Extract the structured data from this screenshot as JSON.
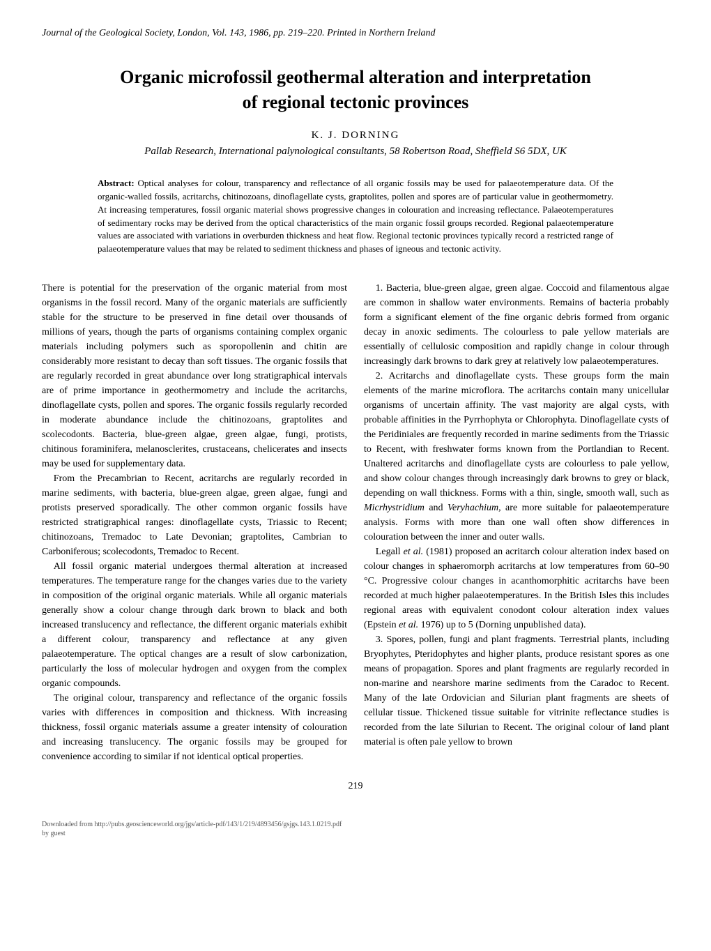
{
  "journal_header": "Journal of the Geological Society, London, Vol. 143, 1986, pp. 219–220. Printed in Northern Ireland",
  "title_line1": "Organic microfossil geothermal alteration and interpretation",
  "title_line2": "of regional tectonic provinces",
  "author": "K. J. DORNING",
  "affiliation": "Pallab Research, International palynological consultants, 58 Robertson Road, Sheffield S6 5DX, UK",
  "abstract_label": "Abstract:",
  "abstract_text": " Optical analyses for colour, transparency and reflectance of all organic fossils may be used for palaeotemperature data. Of the organic-walled fossils, acritarchs, chitinozoans, dinoflagellate cysts, graptolites, pollen and spores are of particular value in geothermometry. At increasing temperatures, fossil organic material shows progressive changes in colouration and increasing reflectance. Palaeotemperatures of sedimentary rocks may be derived from the optical characteristics of the main organic fossil groups recorded. Regional palaeotemperature values are associated with variations in overburden thickness and heat flow. Regional tectonic provinces typically record a restricted range of palaeotemperature values that may be related to sediment thickness and phases of igneous and tectonic activity.",
  "left_col": {
    "p1": "There is potential for the preservation of the organic material from most organisms in the fossil record. Many of the organic materials are sufficiently stable for the structure to be preserved in fine detail over thousands of millions of years, though the parts of organisms containing complex organic materials including polymers such as sporopollenin and chitin are considerably more resistant to decay than soft tissues. The organic fossils that are regularly recorded in great abundance over long stratigraphical intervals are of prime importance in geothermometry and include the acritarchs, dinoflagellate cysts, pollen and spores. The organic fossils regularly recorded in moderate abundance include the chitinozoans, graptolites and scolecodonts. Bacteria, blue-green algae, green algae, fungi, protists, chitinous foraminifera, melanosclerites, crustaceans, chelicerates and insects may be used for supplementary data.",
    "p2": "From the Precambrian to Recent, acritarchs are regularly recorded in marine sediments, with bacteria, blue-green algae, green algae, fungi and protists preserved sporadically. The other common organic fossils have restricted stratigraphical ranges: dinoflagellate cysts, Triassic to Recent; chitinozoans, Tremadoc to Late Devonian; graptolites, Cambrian to Carboniferous; scolecodonts, Tremadoc to Recent.",
    "p3": "All fossil organic material undergoes thermal alteration at increased temperatures. The temperature range for the changes varies due to the variety in composition of the original organic materials. While all organic materials generally show a colour change through dark brown to black and both increased translucency and reflectance, the different organic materials exhibit a different colour, transparency and reflectance at any given palaeotemperature. The optical changes are a result of slow carbonization, particularly the loss of molecular hydrogen and oxygen from the complex organic compounds.",
    "p4": "The original colour, transparency and reflectance of the organic fossils varies with differences in composition and thickness. With increasing thickness, fossil organic materials assume a greater intensity of colouration and increasing translucency. The organic fossils may be grouped for convenience according to similar if not identical optical properties."
  },
  "right_col": {
    "p1": "1. Bacteria, blue-green algae, green algae. Coccoid and filamentous algae are common in shallow water environments. Remains of bacteria probably form a significant element of the fine organic debris formed from organic decay in anoxic sediments. The colourless to pale yellow materials are essentially of cellulosic composition and rapidly change in colour through increasingly dark browns to dark grey at relatively low palaeotemperatures.",
    "p2": "2. Acritarchs and dinoflagellate cysts. These groups form the main elements of the marine microflora. The acritarchs contain many unicellular organisms of uncertain affinity. The vast majority are algal cysts, with probable affinities in the Pyrrhophyta or Chlorophyta. Dinoflagellate cysts of the Peridiniales are frequently recorded in marine sediments from the Triassic to Recent, with freshwater forms known from the Portlandian to Recent. Unaltered acritarchs and dinoflagellate cysts are colourless to pale yellow, and show colour changes through increasingly dark browns to grey or black, depending on wall thickness. Forms with a thin, single, smooth wall, such as ",
    "p2_species1": "Micrhystridium",
    "p2_mid": " and ",
    "p2_species2": "Veryhachium,",
    "p2_end": " are more suitable for palaeotemperature analysis. Forms with more than one wall often show differences in colouration between the inner and outer walls.",
    "p3_start": "Legall ",
    "p3_etal": "et al.",
    "p3_mid": " (1981) proposed an acritarch colour alteration index based on colour changes in sphaeromorph acritarchs at low temperatures from 60–90 °C. Progressive colour changes in acanthomorphitic acritarchs have been recorded at much higher palaeotemperatures. In the British Isles this includes regional areas with equivalent conodont colour alteration index values (Epstein ",
    "p3_etal2": "et al.",
    "p3_end": " 1976) up to 5 (Dorning unpublished data).",
    "p4": "3. Spores, pollen, fungi and plant fragments. Terrestrial plants, including Bryophytes, Pteridophytes and higher plants, produce resistant spores as one means of propagation. Spores and plant fragments are regularly recorded in non-marine and nearshore marine sediments from the Caradoc to Recent. Many of the late Ordovician and Silurian plant fragments are sheets of cellular tissue. Thickened tissue suitable for vitrinite reflectance studies is recorded from the late Silurian to Recent. The original colour of land plant material is often pale yellow to brown"
  },
  "page_number": "219",
  "footer_line1": "Downloaded from http://pubs.geoscienceworld.org/jgs/article-pdf/143/1/219/4893456/gsjgs.143.1.0219.pdf",
  "footer_line2": "by guest"
}
